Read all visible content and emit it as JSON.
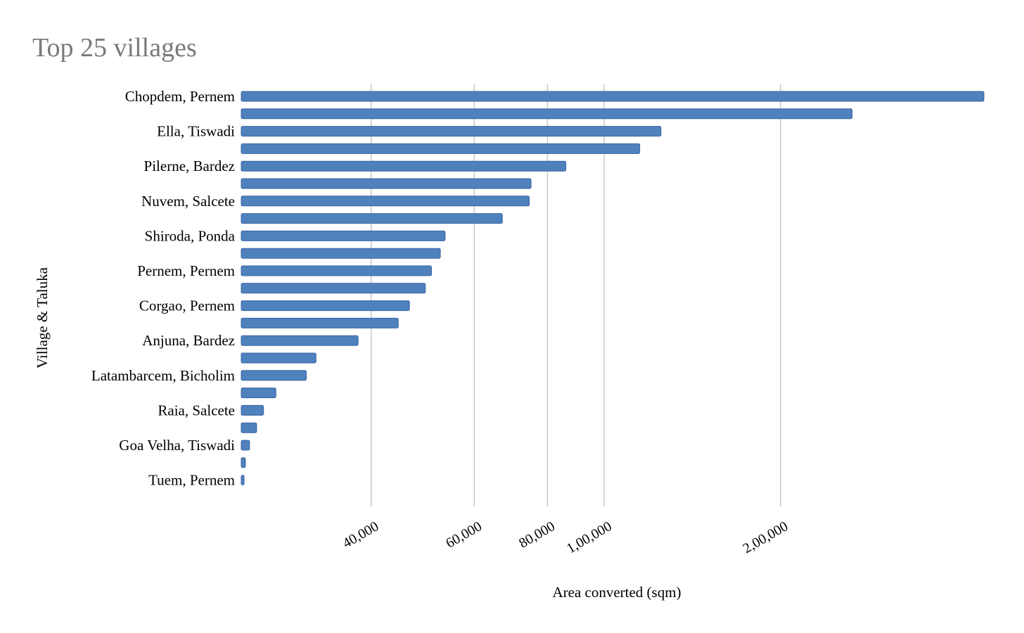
{
  "chart_data": {
    "type": "bar",
    "orientation": "horizontal",
    "title": "Top 25 villages",
    "xlabel": "Area converted (sqm)",
    "ylabel": "Village & Taluka",
    "x_scale": "log",
    "xlim": [
      24000,
      460000
    ],
    "x_ticks": [
      40000,
      60000,
      80000,
      100000,
      200000
    ],
    "x_tick_labels": [
      "40,000",
      "60,000",
      "80,000",
      "1,00,000",
      "2,00,000"
    ],
    "grid": true,
    "legend": "none",
    "bar_color": "#4f81bd",
    "categories": [
      "Chopdem, Pernem",
      "",
      "Ella, Tiswadi",
      "",
      "Pilerne, Bardez",
      "",
      "Nuvem, Salcete",
      "",
      "Shiroda, Ponda",
      "",
      "Pernem, Pernem",
      "",
      "Corgao, Pernem",
      "",
      "Anjuna, Bardez",
      "",
      "Latambarcem, Bicholim",
      "",
      "Raia, Salcete",
      "",
      "Goa Velha, Tiswadi",
      "",
      "Tuem, Pernem"
    ],
    "values": [
      445000,
      265000,
      125000,
      115000,
      86000,
      75000,
      74500,
      67000,
      53500,
      52500,
      50700,
      49500,
      46500,
      44500,
      38000,
      32200,
      31000,
      27500,
      26200,
      25500,
      24800,
      24400,
      24100
    ]
  }
}
